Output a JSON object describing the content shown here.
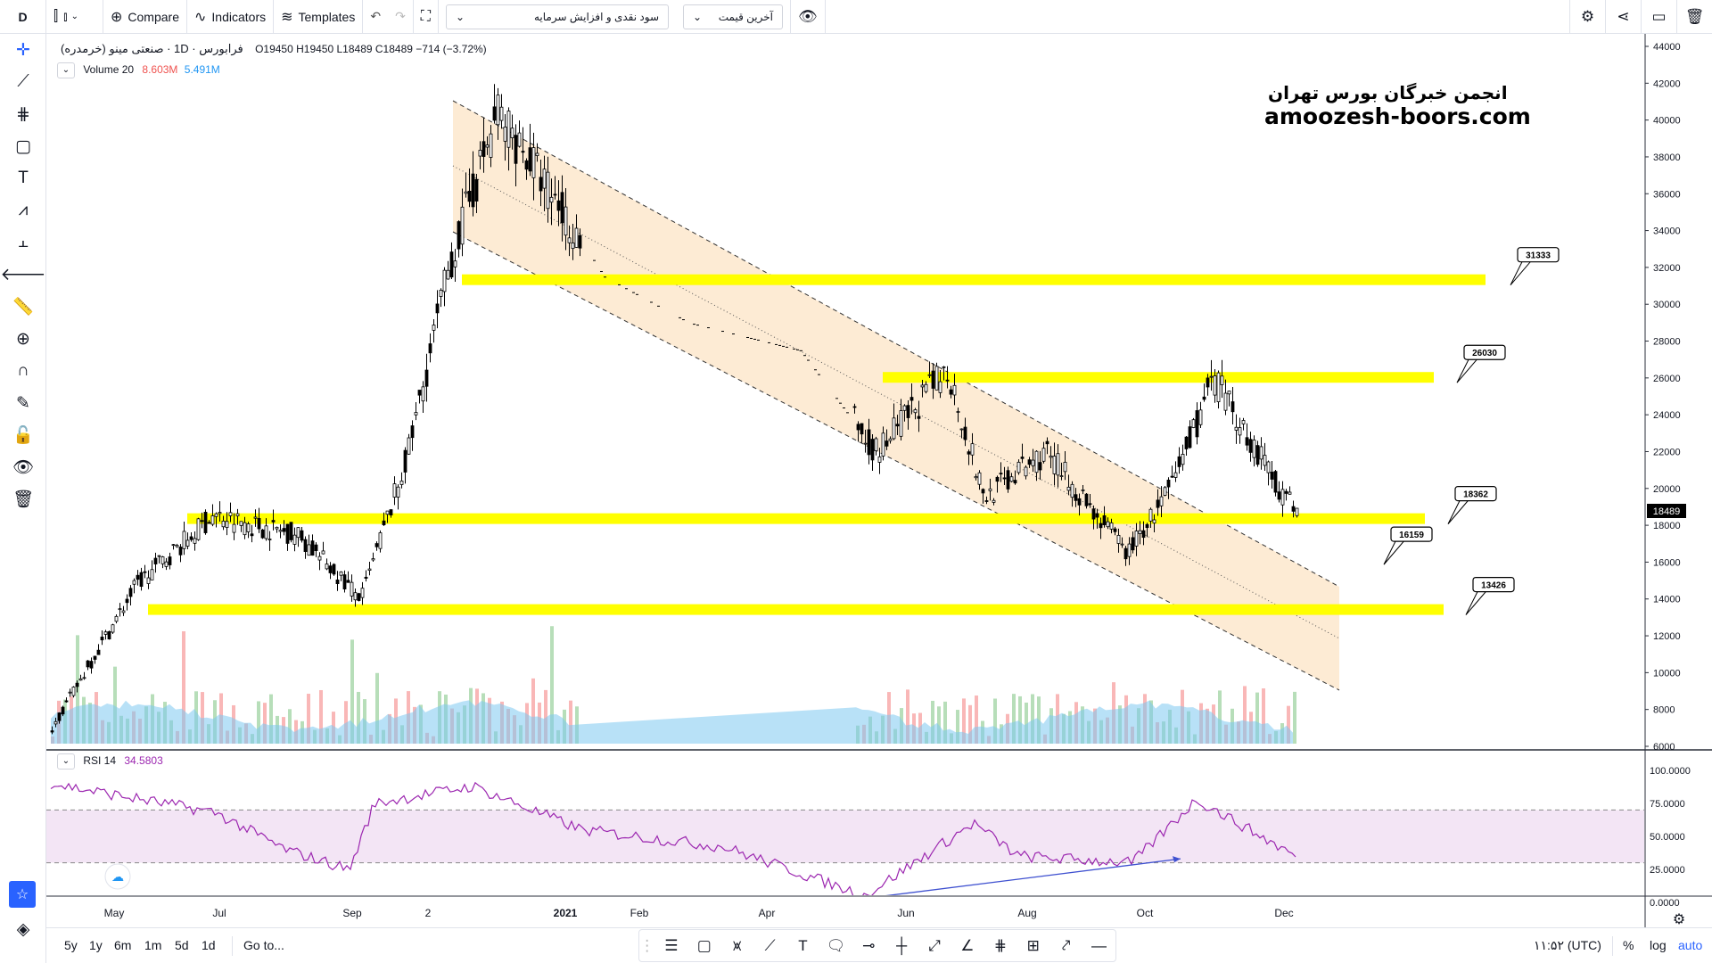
{
  "topbar": {
    "interval": "D",
    "compare_label": "Compare",
    "indicators_label": "Indicators",
    "templates_label": "Templates",
    "field_select": "سود نقدی و افزایش سرمایه",
    "price_select": "آخرین قیمت"
  },
  "symbol": {
    "name": "فرابورس · 1D · صنعتی مینو (خرمدره)",
    "open": "O19450",
    "high": "H19450",
    "low": "L18489",
    "close": "C18489",
    "change": "−714 (−3.72%)"
  },
  "volume_legend": {
    "label": "Volume 20",
    "v1": "8.603M",
    "v2": "5.491M"
  },
  "rsi_legend": {
    "label": "RSI 14",
    "value": "34.5803"
  },
  "watermark": {
    "line1": "انجمن خبرگان بورس تهران",
    "line2": "amoozesh-boors.com"
  },
  "colors": {
    "up": "#26a69a",
    "down": "#ef5350",
    "candle": "#000000",
    "level": "#ffff00",
    "channel": "#fde7cc",
    "rsi": "#9c27b0",
    "rsi_band": "#f3e5f5",
    "volume_ma": "#7ec8f0",
    "divergence": "#3f51d0"
  },
  "price_axis": {
    "ticks": [
      "44000",
      "42000",
      "40000",
      "38000",
      "36000",
      "34000",
      "32000",
      "30000",
      "28000",
      "26000",
      "24000",
      "22000",
      "20000",
      "18000",
      "16000",
      "14000",
      "12000",
      "10000",
      "8000",
      "6000"
    ],
    "last_price": "18489"
  },
  "rsi_axis": {
    "ticks": [
      "100.0000",
      "75.0000",
      "50.0000",
      "25.0000",
      "0.0000"
    ]
  },
  "time_axis": {
    "labels": [
      "May",
      "Jul",
      "Sep",
      "2",
      "2021",
      "Feb",
      "Apr",
      "Jun",
      "Aug",
      "Oct",
      "Dec"
    ]
  },
  "bottombar": {
    "ranges": [
      "5y",
      "1y",
      "6m",
      "1m",
      "5d",
      "1d"
    ],
    "goto": "Go to...",
    "time": "۱۱:۵۲ (UTC)",
    "percent": "%",
    "log": "log",
    "auto": "auto"
  },
  "chart_data": [
    {
      "type": "candlestick",
      "title": "صنعتی مینو (خرمدره)",
      "y_scale": "linear",
      "ylim": [
        5000,
        45000
      ],
      "horizontal_levels": [
        {
          "label": "31333",
          "price": 31333
        },
        {
          "label": "26030",
          "price": 26030
        },
        {
          "label": "18362",
          "price": 18362
        },
        {
          "label": "16159",
          "price": 16159
        },
        {
          "label": "13426",
          "price": 13426
        }
      ],
      "approx_price_path": [
        {
          "x": "May",
          "y": 7000
        },
        {
          "x": "Jun",
          "y": 14800
        },
        {
          "x": "Jul",
          "y": 18500
        },
        {
          "x": "Aug",
          "y": 17500
        },
        {
          "x": "Sep",
          "y": 14000
        },
        {
          "x": "Oct",
          "y": 22000
        },
        {
          "x": "Nov",
          "y": 32000
        },
        {
          "x": "2021",
          "y": 40500
        },
        {
          "x": "Feb",
          "y": 31500
        },
        {
          "x": "Mar",
          "y": 29000
        },
        {
          "x": "Apr",
          "y": 27500
        },
        {
          "x": "Jun",
          "y": 22000
        },
        {
          "x": "Jul",
          "y": 26500
        },
        {
          "x": "Aug",
          "y": 19500
        },
        {
          "x": "Sep",
          "y": 22000
        },
        {
          "x": "Oct",
          "y": 16500
        },
        {
          "x": "Nov",
          "y": 20000
        },
        {
          "x": "Nov",
          "y": 26000
        },
        {
          "x": "Dec",
          "y": 22500
        },
        {
          "x": "Dec",
          "y": 18489
        }
      ]
    },
    {
      "type": "line",
      "title": "RSI 14",
      "ylim": [
        0,
        100
      ],
      "bands": [
        30,
        70
      ],
      "last_value": 34.5803,
      "approx_values": [
        {
          "x": "May",
          "y": 90
        },
        {
          "x": "Jul",
          "y": 68
        },
        {
          "x": "Aug",
          "y": 40
        },
        {
          "x": "Sep",
          "y": 25
        },
        {
          "x": "2",
          "y": 75
        },
        {
          "x": "2021",
          "y": 88
        },
        {
          "x": "Feb",
          "y": 55
        },
        {
          "x": "Apr",
          "y": 42
        },
        {
          "x": "Jun",
          "y": 5
        },
        {
          "x": "Jul",
          "y": 60
        },
        {
          "x": "Aug",
          "y": 35
        },
        {
          "x": "Oct",
          "y": 30
        },
        {
          "x": "Nov",
          "y": 78
        },
        {
          "x": "Dec",
          "y": 34.58
        }
      ]
    }
  ]
}
